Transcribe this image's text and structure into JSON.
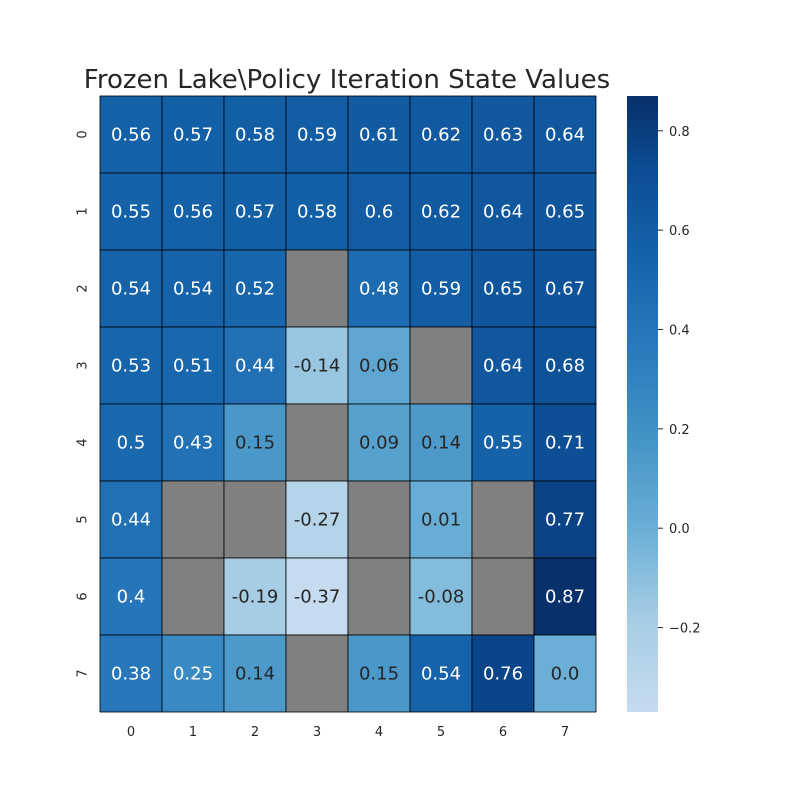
{
  "chart_data": {
    "type": "heatmap",
    "title": "Frozen Lake\\Policy Iteration State Values",
    "xlabel": "",
    "ylabel": "",
    "x_ticks": [
      "0",
      "1",
      "2",
      "3",
      "4",
      "5",
      "6",
      "7"
    ],
    "y_ticks": [
      "0",
      "1",
      "2",
      "3",
      "4",
      "5",
      "6",
      "7"
    ],
    "values": [
      [
        0.56,
        0.57,
        0.58,
        0.59,
        0.61,
        0.62,
        0.63,
        0.64
      ],
      [
        0.55,
        0.56,
        0.57,
        0.58,
        0.6,
        0.62,
        0.64,
        0.65
      ],
      [
        0.54,
        0.54,
        0.52,
        null,
        0.48,
        0.59,
        0.65,
        0.67
      ],
      [
        0.53,
        0.51,
        0.44,
        -0.14,
        0.06,
        null,
        0.64,
        0.68
      ],
      [
        0.5,
        0.43,
        0.15,
        null,
        0.09,
        0.14,
        0.55,
        0.71
      ],
      [
        0.44,
        null,
        null,
        -0.27,
        null,
        0.01,
        null,
        0.77
      ],
      [
        0.4,
        null,
        -0.19,
        -0.37,
        null,
        -0.08,
        null,
        0.87
      ],
      [
        0.38,
        0.25,
        0.14,
        null,
        0.15,
        0.54,
        0.76,
        0.0
      ]
    ],
    "labels": [
      [
        "0.56",
        "0.57",
        "0.58",
        "0.59",
        "0.61",
        "0.62",
        "0.63",
        "0.64"
      ],
      [
        "0.55",
        "0.56",
        "0.57",
        "0.58",
        "0.6",
        "0.62",
        "0.64",
        "0.65"
      ],
      [
        "0.54",
        "0.54",
        "0.52",
        "",
        "0.48",
        "0.59",
        "0.65",
        "0.67"
      ],
      [
        "0.53",
        "0.51",
        "0.44",
        "-0.14",
        "0.06",
        "",
        "0.64",
        "0.68"
      ],
      [
        "0.5",
        "0.43",
        "0.15",
        "",
        "0.09",
        "0.14",
        "0.55",
        "0.71"
      ],
      [
        "0.44",
        "",
        "",
        "-0.27",
        "",
        "0.01",
        "",
        "0.77"
      ],
      [
        "0.4",
        "",
        "-0.19",
        "-0.37",
        "",
        "-0.08",
        "",
        "0.87"
      ],
      [
        "0.38",
        "0.25",
        "0.14",
        "",
        "0.15",
        "0.54",
        "0.76",
        "0.0"
      ]
    ],
    "colormap": "Blues",
    "vmin": -0.37,
    "vmax": 0.87,
    "masked_color": "#808080",
    "cell_border_color": "#000000",
    "colorbar": {
      "ticks": [
        -0.2,
        0.0,
        0.2,
        0.4,
        0.6,
        0.8
      ],
      "tick_labels": [
        "−0.2",
        "0.0",
        "0.2",
        "0.4",
        "0.6",
        "0.8"
      ]
    },
    "grid": false,
    "legend": "colorbar-right"
  }
}
